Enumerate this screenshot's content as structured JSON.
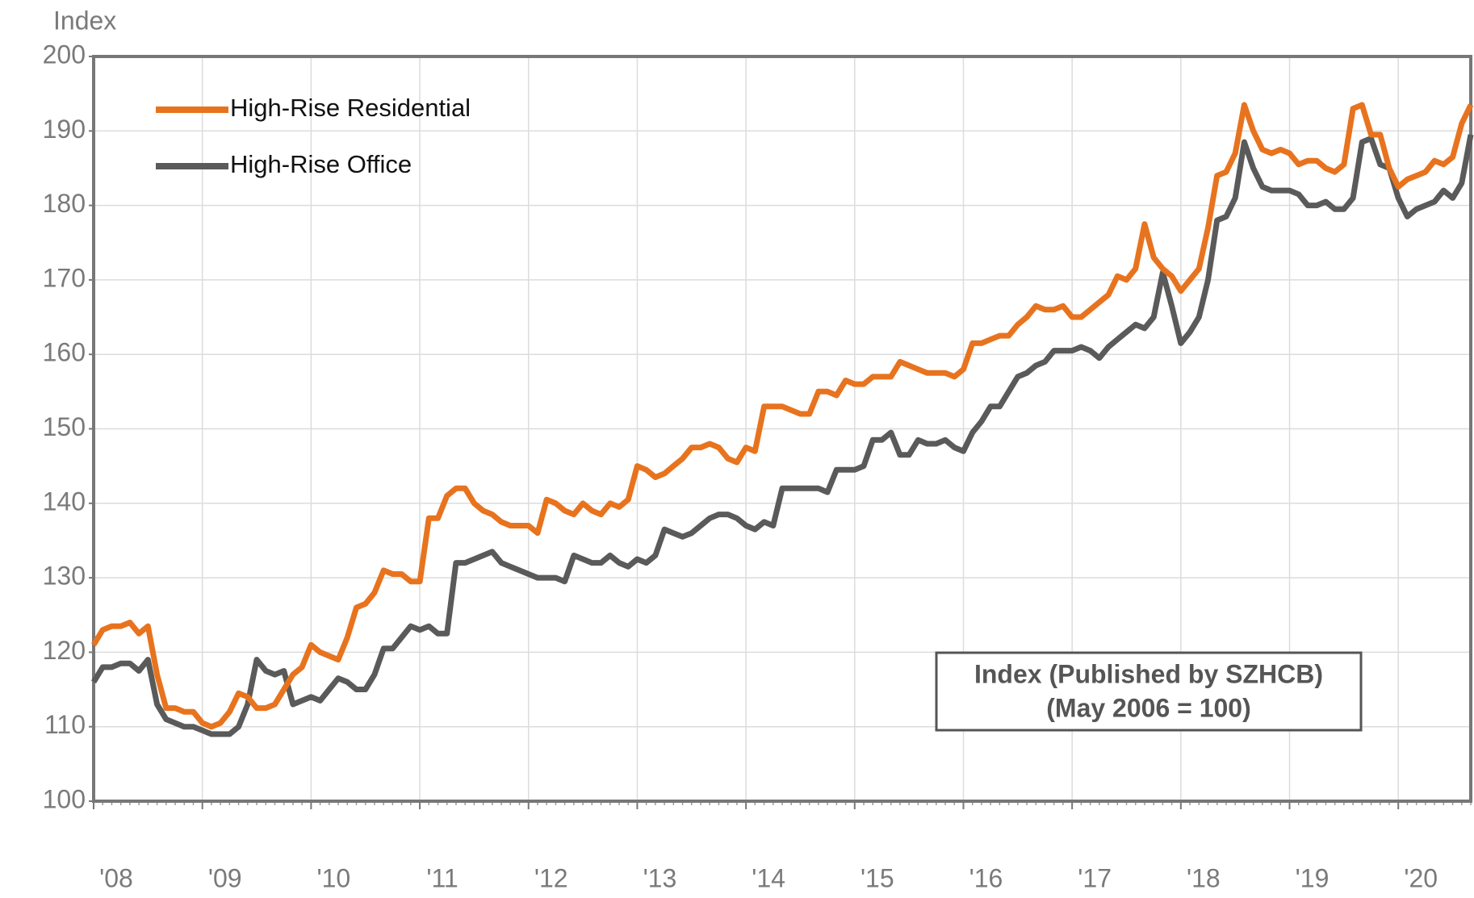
{
  "chart_data": {
    "type": "line",
    "y_label": "Index",
    "annotations": [
      "Index (Published by SZHCB)",
      "(May 2006 = 100)"
    ],
    "categories": [
      "'08",
      null,
      null,
      null,
      null,
      null,
      null,
      null,
      null,
      null,
      null,
      null,
      "'09",
      null,
      null,
      null,
      null,
      null,
      null,
      null,
      null,
      null,
      null,
      null,
      "'10",
      null,
      null,
      null,
      null,
      null,
      null,
      null,
      null,
      null,
      null,
      null,
      "'11",
      null,
      null,
      null,
      null,
      null,
      null,
      null,
      null,
      null,
      null,
      null,
      "'12",
      null,
      null,
      null,
      null,
      null,
      null,
      null,
      null,
      null,
      null,
      null,
      "'13",
      null,
      null,
      null,
      null,
      null,
      null,
      null,
      null,
      null,
      null,
      null,
      "'14",
      null,
      null,
      null,
      null,
      null,
      null,
      null,
      null,
      null,
      null,
      null,
      "'15",
      null,
      null,
      null,
      null,
      null,
      null,
      null,
      null,
      null,
      null,
      null,
      "'16",
      null,
      null,
      null,
      null,
      null,
      null,
      null,
      null,
      null,
      null,
      null,
      "'17",
      null,
      null,
      null,
      null,
      null,
      null,
      null,
      null,
      null,
      null,
      null,
      "'18",
      null,
      null,
      null,
      null,
      null,
      null,
      null,
      null,
      null,
      null,
      null,
      "'19",
      null,
      null,
      null,
      null,
      null,
      null,
      null,
      null,
      null,
      null,
      null,
      "'20",
      null,
      null,
      null,
      null,
      null,
      null,
      null,
      null
    ],
    "series": [
      {
        "name": "High-Rise Residential",
        "color": "#e8731e",
        "values": [
          121,
          123,
          123.5,
          123.5,
          124,
          122.5,
          123.5,
          117,
          112.5,
          112.5,
          112,
          112,
          110.5,
          110,
          110.5,
          112,
          114.5,
          114,
          112.5,
          112.5,
          113,
          115,
          117,
          118,
          121,
          120,
          119.5,
          119,
          122,
          126,
          126.5,
          128,
          131,
          130.5,
          130.5,
          129.5,
          129.5,
          138,
          138,
          141,
          142,
          142,
          140,
          139,
          138.5,
          137.5,
          137,
          137,
          137,
          136,
          140.5,
          140,
          139,
          138.5,
          140,
          139,
          138.5,
          140,
          139.5,
          140.5,
          145,
          144.5,
          143.5,
          144,
          145,
          146,
          147.5,
          147.5,
          148,
          147.5,
          146,
          145.5,
          147.5,
          147,
          153,
          153,
          153,
          152.5,
          152,
          152,
          155,
          155,
          154.5,
          156.5,
          156,
          156,
          157,
          157,
          157,
          159,
          158.5,
          158,
          157.5,
          157.5,
          157.5,
          157,
          158,
          161.5,
          161.5,
          162,
          162.5,
          162.5,
          164,
          165,
          166.5,
          166,
          166,
          166.5,
          165,
          165,
          166,
          167,
          168,
          170.5,
          170,
          171.5,
          177.5,
          173,
          171.5,
          170.5,
          168.5,
          170,
          171.5,
          177,
          184,
          184.5,
          187,
          193.5,
          190,
          187.5,
          187,
          187.5,
          187,
          185.5,
          186,
          186,
          185,
          184.5,
          185.5,
          193,
          193.5,
          189.5,
          189.5,
          185,
          182.5,
          183.5,
          184,
          184.5,
          186,
          185.5,
          186.5,
          191,
          193.5
        ]
      },
      {
        "name": "High-Rise Office",
        "color": "#5a5a5a",
        "values": [
          116,
          118,
          118,
          118.5,
          118.5,
          117.5,
          119,
          113,
          111,
          110.5,
          110,
          110,
          109.5,
          109,
          109,
          109,
          110,
          113,
          119,
          117.5,
          117,
          117.5,
          113,
          113.5,
          114,
          113.5,
          115,
          116.5,
          116,
          115,
          115,
          117,
          120.5,
          120.5,
          122,
          123.5,
          123,
          123.5,
          122.5,
          122.5,
          132,
          132,
          132.5,
          133,
          133.5,
          132,
          131.5,
          131,
          130.5,
          130,
          130,
          130,
          129.5,
          133,
          132.5,
          132,
          132,
          133,
          132,
          131.5,
          132.5,
          132,
          133,
          136.5,
          136,
          135.5,
          136,
          137,
          138,
          138.5,
          138.5,
          138,
          137,
          136.5,
          137.5,
          137,
          142,
          142,
          142,
          142,
          142,
          141.5,
          144.5,
          144.5,
          144.5,
          145,
          148.5,
          148.5,
          149.5,
          146.5,
          146.5,
          148.5,
          148,
          148,
          148.5,
          147.5,
          147,
          149.5,
          151,
          153,
          153,
          155,
          157,
          157.5,
          158.5,
          159,
          160.5,
          160.5,
          160.5,
          161,
          160.5,
          159.5,
          161,
          162,
          163,
          164,
          163.5,
          165,
          171,
          166.5,
          161.5,
          163,
          165,
          170,
          178,
          178.5,
          181,
          188.5,
          185,
          182.5,
          182,
          182,
          182,
          181.5,
          180,
          180,
          180.5,
          179.5,
          179.5,
          181,
          188.5,
          189,
          185.5,
          185,
          181,
          178.5,
          179.5,
          180,
          180.5,
          182,
          181,
          183,
          189.5
        ]
      }
    ],
    "ylim": [
      100,
      200
    ],
    "yticks": [
      100,
      110,
      120,
      130,
      140,
      150,
      160,
      170,
      180,
      190,
      200
    ],
    "grid": true,
    "legend": "upper left"
  }
}
